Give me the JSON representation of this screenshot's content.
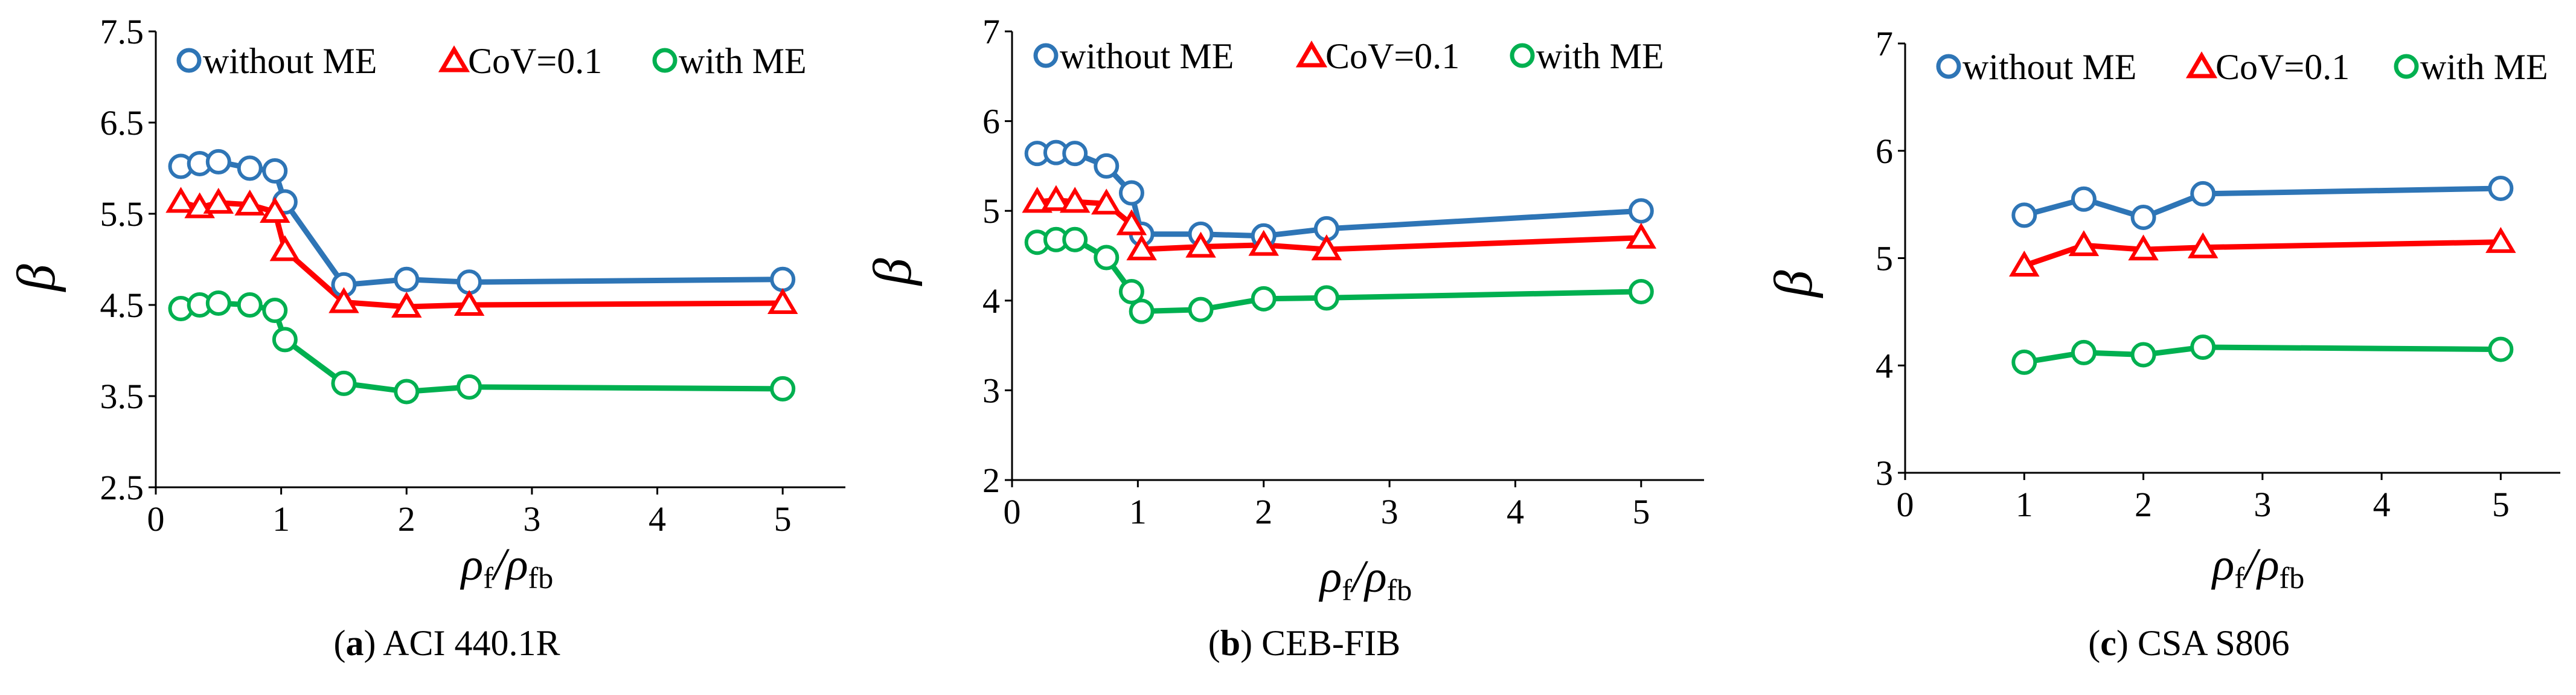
{
  "chart_data": [
    {
      "type": "line",
      "caption_letter": "a",
      "caption_text": "ACI 440.1R",
      "ylabel": "β",
      "xlabel": "ρf/ρfb",
      "xlabel_main1": "ρ",
      "xlabel_sub1": "f",
      "xlabel_slash": "/",
      "xlabel_main2": "ρ",
      "xlabel_sub2": "fb",
      "xlim": [
        0,
        5.5
      ],
      "ylim": [
        2.5,
        7.5
      ],
      "xticks": [
        0,
        1,
        2,
        3,
        4,
        5
      ],
      "xtick_labels": [
        "0",
        "1",
        "2",
        "3",
        "4",
        "5"
      ],
      "yticks": [
        2.5,
        3.5,
        4.5,
        5.5,
        6.5,
        7.5
      ],
      "ytick_labels": [
        "2.5",
        "3.5",
        "4.5",
        "5.5",
        "6.5",
        "7.5"
      ],
      "legend": [
        "without ME",
        "CoV=0.1",
        "with ME"
      ],
      "series": [
        {
          "name": "without ME",
          "color": "#2E75B6",
          "marker": "circle",
          "x": [
            0.2,
            0.35,
            0.5,
            0.75,
            0.95,
            1.03,
            1.5,
            2.0,
            2.5,
            5.0
          ],
          "y": [
            6.02,
            6.05,
            6.07,
            6.0,
            5.97,
            5.63,
            4.72,
            4.78,
            4.75,
            4.78
          ]
        },
        {
          "name": "CoV=0.1",
          "color": "#FF0000",
          "marker": "triangle",
          "x": [
            0.2,
            0.35,
            0.5,
            0.75,
            0.95,
            1.03,
            1.5,
            2.0,
            2.5,
            5.0
          ],
          "y": [
            5.63,
            5.57,
            5.62,
            5.6,
            5.52,
            5.1,
            4.53,
            4.48,
            4.5,
            4.52
          ]
        },
        {
          "name": "with ME",
          "color": "#00B050",
          "marker": "circle",
          "x": [
            0.2,
            0.35,
            0.5,
            0.75,
            0.95,
            1.03,
            1.5,
            2.0,
            2.5,
            5.0
          ],
          "y": [
            4.46,
            4.5,
            4.52,
            4.5,
            4.44,
            4.12,
            3.64,
            3.55,
            3.6,
            3.58
          ]
        }
      ]
    },
    {
      "type": "line",
      "caption_letter": "b",
      "caption_text": "CEB-FIB",
      "ylabel": "β",
      "xlabel": "ρf/ρfb",
      "xlabel_main1": "ρ",
      "xlabel_sub1": "f",
      "xlabel_slash": "/",
      "xlabel_main2": "ρ",
      "xlabel_sub2": "fb",
      "xlim": [
        0,
        5.5
      ],
      "ylim": [
        2,
        7
      ],
      "xticks": [
        0,
        1,
        2,
        3,
        4,
        5
      ],
      "xtick_labels": [
        "0",
        "1",
        "2",
        "3",
        "4",
        "5"
      ],
      "yticks": [
        2,
        3,
        4,
        5,
        6,
        7
      ],
      "ytick_labels": [
        "2",
        "3",
        "4",
        "5",
        "6",
        "7"
      ],
      "legend": [
        "without ME",
        "CoV=0.1",
        "with ME"
      ],
      "series": [
        {
          "name": "without ME",
          "color": "#2E75B6",
          "marker": "circle",
          "x": [
            0.2,
            0.35,
            0.5,
            0.75,
            0.95,
            1.03,
            1.5,
            2.0,
            2.5,
            5.0
          ],
          "y": [
            5.64,
            5.65,
            5.64,
            5.5,
            5.2,
            4.74,
            4.74,
            4.72,
            4.8,
            5.0
          ]
        },
        {
          "name": "CoV=0.1",
          "color": "#FF0000",
          "marker": "triangle",
          "x": [
            0.2,
            0.35,
            0.5,
            0.75,
            0.95,
            1.03,
            1.5,
            2.0,
            2.5,
            5.0
          ],
          "y": [
            5.1,
            5.12,
            5.1,
            5.08,
            4.85,
            4.57,
            4.6,
            4.62,
            4.57,
            4.7
          ]
        },
        {
          "name": "with ME",
          "color": "#00B050",
          "marker": "circle",
          "x": [
            0.2,
            0.35,
            0.5,
            0.75,
            0.95,
            1.03,
            1.5,
            2.0,
            2.5,
            5.0
          ],
          "y": [
            4.65,
            4.68,
            4.68,
            4.48,
            4.1,
            3.88,
            3.9,
            4.02,
            4.03,
            4.1
          ]
        }
      ]
    },
    {
      "type": "line",
      "caption_letter": "c",
      "caption_text": "CSA S806",
      "ylabel": "β",
      "xlabel": "ρf/ρfb",
      "xlabel_main1": "ρ",
      "xlabel_sub1": "f",
      "xlabel_slash": "/",
      "xlabel_main2": "ρ",
      "xlabel_sub2": "fb",
      "xlim": [
        0,
        5.5
      ],
      "ylim": [
        3,
        7
      ],
      "xticks": [
        0,
        1,
        2,
        3,
        4,
        5
      ],
      "xtick_labels": [
        "0",
        "1",
        "2",
        "3",
        "4",
        "5"
      ],
      "yticks": [
        3,
        4,
        5,
        6,
        7
      ],
      "ytick_labels": [
        "3",
        "4",
        "5",
        "6",
        "7"
      ],
      "legend": [
        "without ME",
        "CoV=0.1",
        "with ME"
      ],
      "series": [
        {
          "name": "without ME",
          "color": "#2E75B6",
          "marker": "circle",
          "x": [
            1.0,
            1.5,
            2.0,
            2.5,
            5.0
          ],
          "y": [
            5.4,
            5.55,
            5.38,
            5.6,
            5.65
          ]
        },
        {
          "name": "CoV=0.1",
          "color": "#FF0000",
          "marker": "triangle",
          "x": [
            1.0,
            1.5,
            2.0,
            2.5,
            5.0
          ],
          "y": [
            4.93,
            5.12,
            5.08,
            5.1,
            5.15
          ]
        },
        {
          "name": "with ME",
          "color": "#00B050",
          "marker": "circle",
          "x": [
            1.0,
            1.5,
            2.0,
            2.5,
            5.0
          ],
          "y": [
            4.03,
            4.12,
            4.1,
            4.17,
            4.15
          ]
        }
      ]
    }
  ]
}
